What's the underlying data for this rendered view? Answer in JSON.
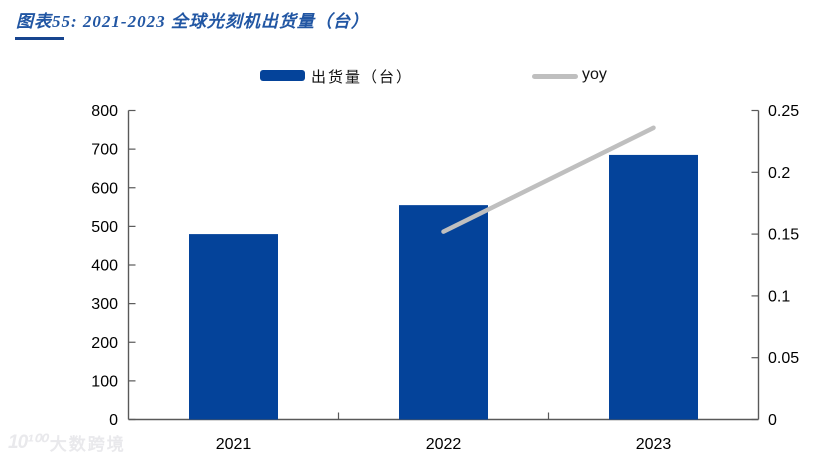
{
  "header": {
    "title": "图表55:  2021-2023 全球光刻机出货量（台）"
  },
  "legend": {
    "bar_label": "出货量（台）",
    "line_label": "yoy"
  },
  "watermark": {
    "icon": "10¹⁰⁰",
    "text": "大数跨境"
  },
  "colors": {
    "bar": "#04439A",
    "line": "#BFBFBF",
    "title": "#2156A3",
    "underline": "#17458F",
    "axis": "#595959",
    "label": "#000000",
    "watermark": "#E9E9EC"
  },
  "chart_data": {
    "type": "bar",
    "title": "图表55: 2021-2023 全球光刻机出货量（台）",
    "categories": [
      "2021",
      "2022",
      "2023"
    ],
    "series": [
      {
        "name": "出货量（台）",
        "type": "bar",
        "axis": "left",
        "values": [
          480,
          555,
          685
        ]
      },
      {
        "name": "yoy",
        "type": "line",
        "axis": "right",
        "values": [
          null,
          0.152,
          0.236
        ]
      }
    ],
    "left_axis": {
      "min": 0,
      "max": 800,
      "ticks": [
        "0",
        "100",
        "200",
        "300",
        "400",
        "500",
        "600",
        "700",
        "800"
      ]
    },
    "right_axis": {
      "min": 0,
      "max": 0.25,
      "ticks": [
        "0",
        "0.05",
        "0.1",
        "0.15",
        "0.2",
        "0.25"
      ]
    },
    "grid": false,
    "legend_position": "top"
  }
}
